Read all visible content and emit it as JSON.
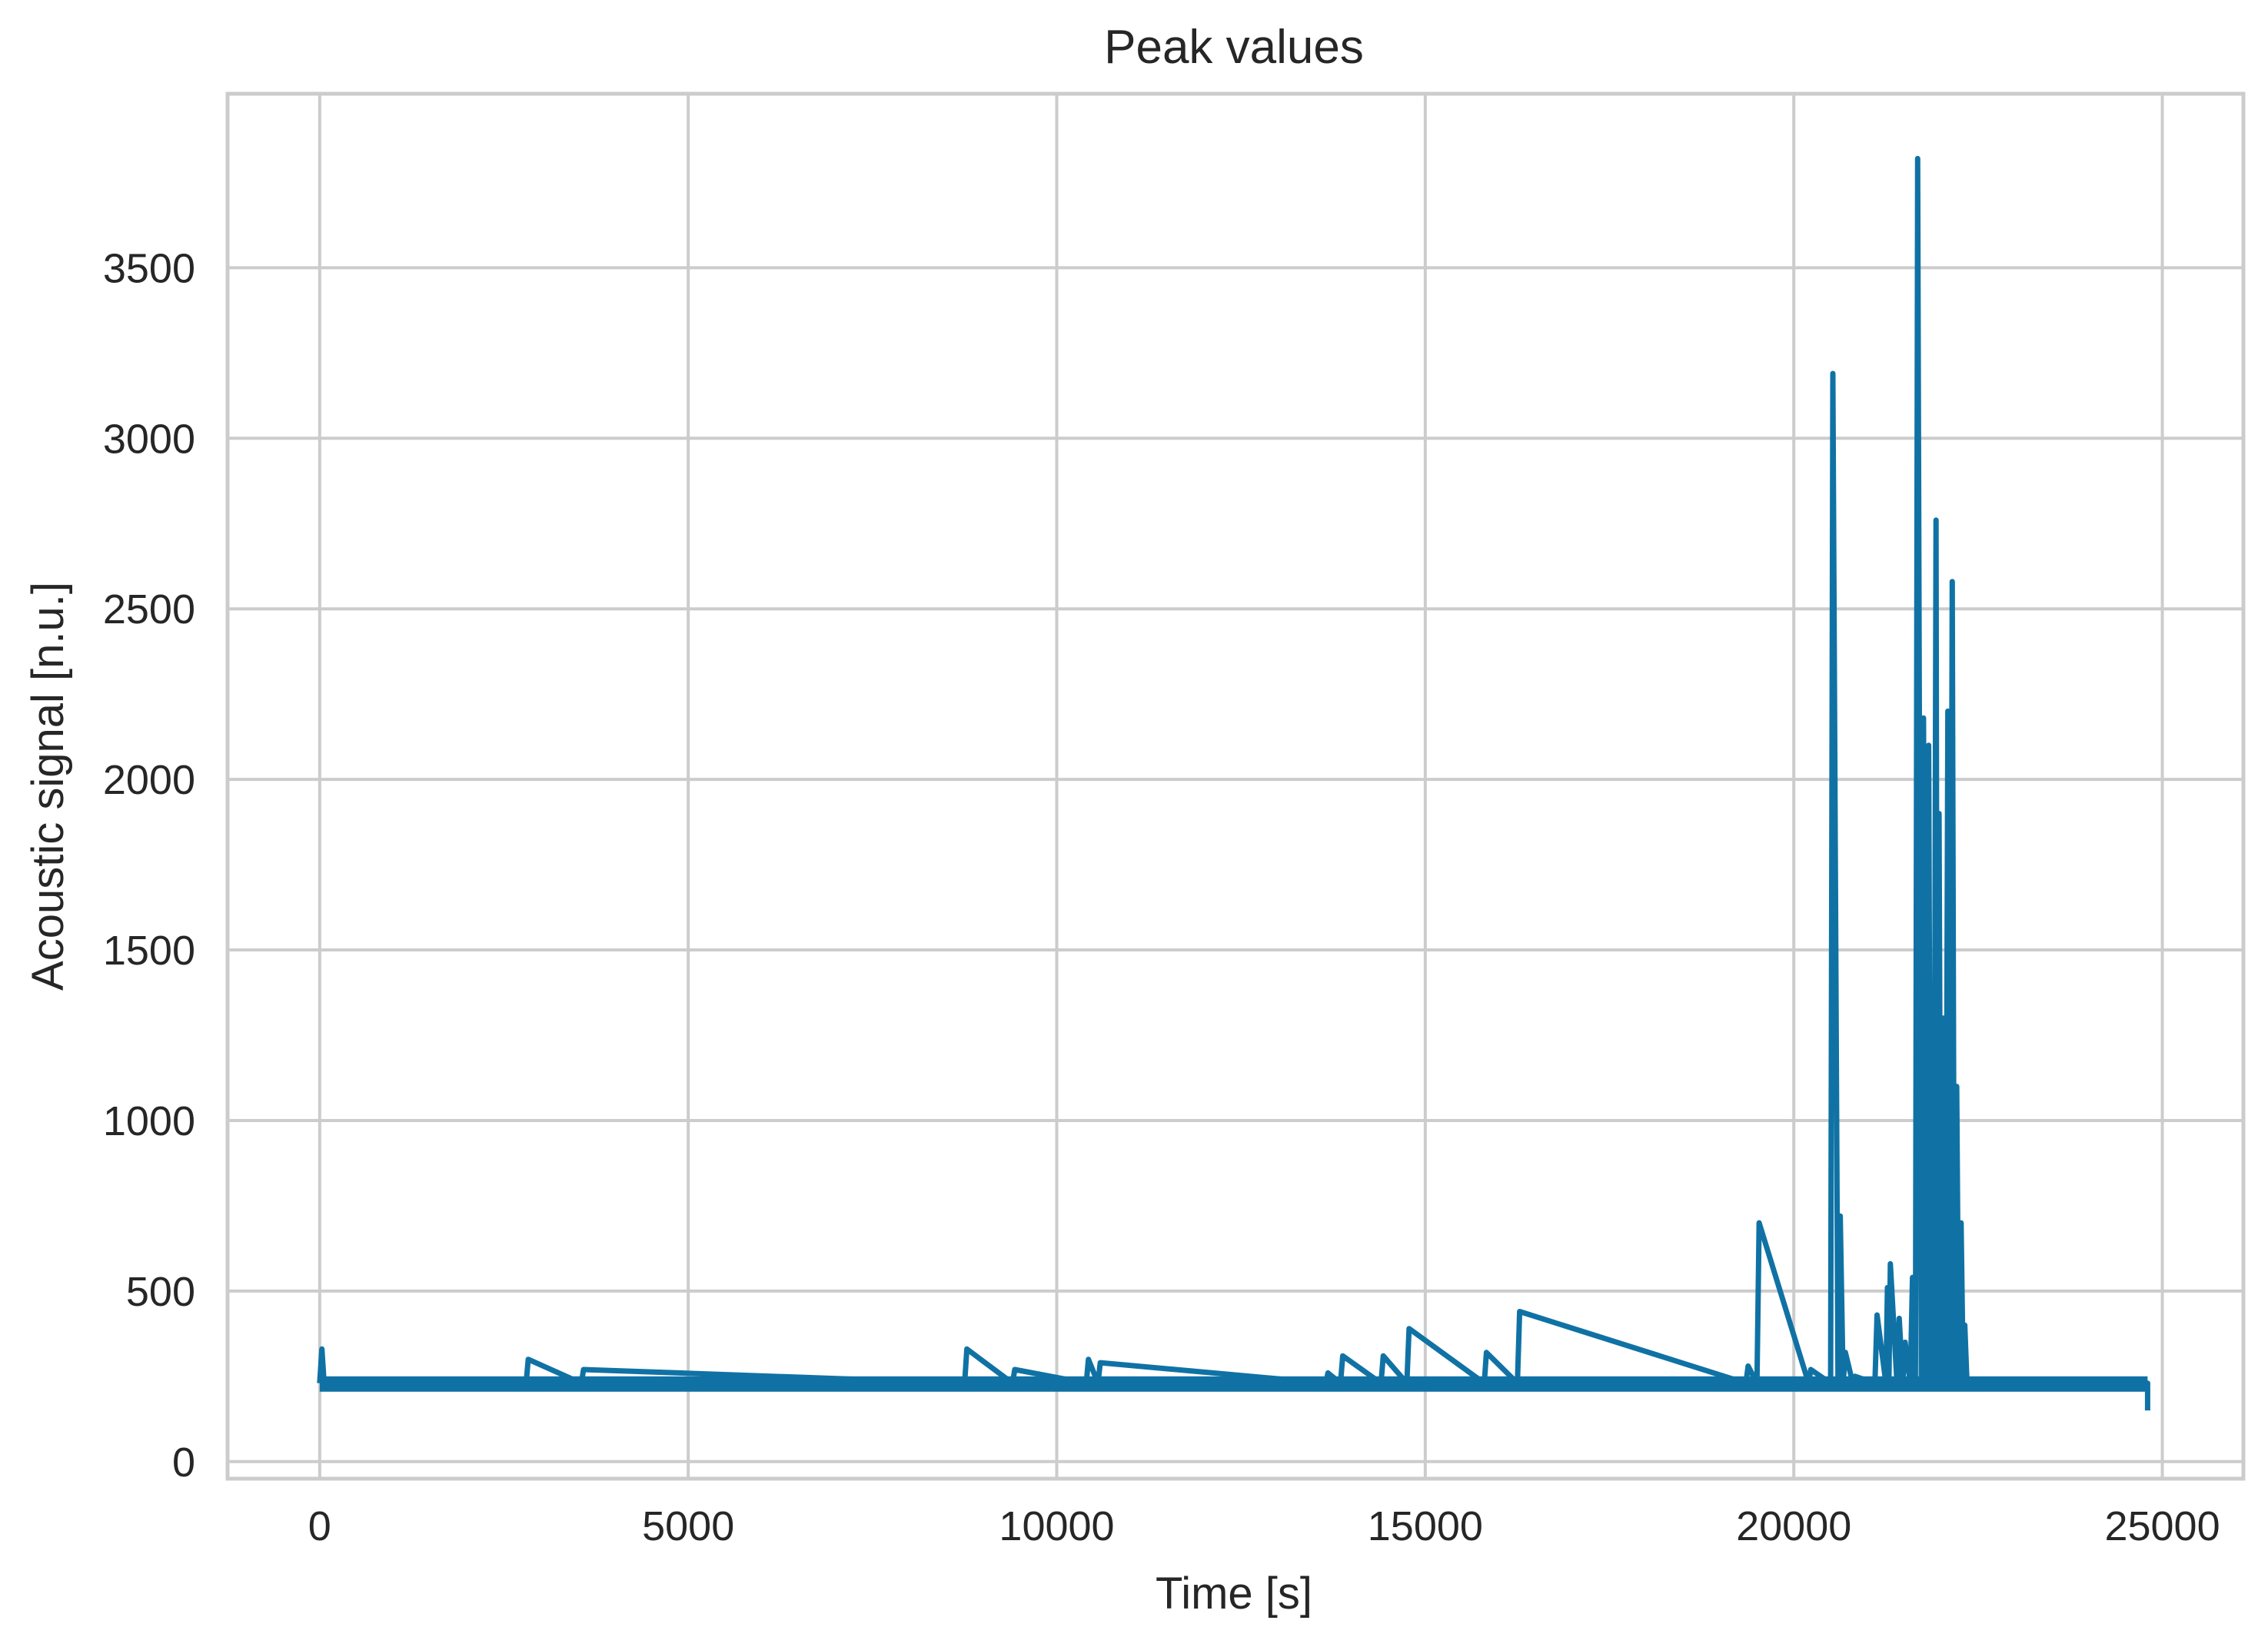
{
  "chart_data": {
    "type": "line",
    "title": "Peak values",
    "xlabel": "Time [s]",
    "ylabel": "Acoustic signal [n.u.]",
    "xlim": [
      -1250,
      26100
    ],
    "ylim": [
      -50,
      4010
    ],
    "xticks": [
      0,
      5000,
      10000,
      15000,
      20000,
      25000
    ],
    "yticks": [
      0,
      500,
      1000,
      1500,
      2000,
      2500,
      3000,
      3500
    ],
    "grid": true,
    "color": "#1072a4",
    "grid_color": "#cccccc",
    "baseline": {
      "x_start": 0,
      "x_end": 24800,
      "low": 205,
      "high": 250
    },
    "x": [
      0,
      30,
      60,
      90,
      2800,
      2830,
      3550,
      3580,
      8750,
      8780,
      9400,
      9430,
      10400,
      10430,
      10560,
      10590,
      13650,
      13680,
      13850,
      13880,
      14400,
      14430,
      14750,
      14780,
      15800,
      15830,
      16250,
      16280,
      19350,
      19380,
      19500,
      19530,
      20200,
      20230,
      20500,
      20530,
      20600,
      20630,
      20670,
      20700,
      20800,
      20830,
      21100,
      21130,
      21250,
      21270,
      21290,
      21310,
      21400,
      21430,
      21480,
      21510,
      21580,
      21610,
      21650,
      21680,
      21730,
      21760,
      21800,
      21830,
      21860,
      21880,
      21900,
      21930,
      21950,
      21970,
      22000,
      22030,
      22060,
      22090,
      22120,
      22150,
      22180,
      22210,
      22240,
      22270,
      22300,
      22320,
      22350,
      22500,
      24800,
      24800
    ],
    "y": [
      230,
      330,
      230,
      230,
      230,
      300,
      230,
      270,
      230,
      330,
      230,
      270,
      230,
      300,
      230,
      290,
      230,
      260,
      230,
      310,
      230,
      310,
      230,
      390,
      230,
      320,
      230,
      440,
      230,
      280,
      230,
      700,
      230,
      270,
      230,
      3190,
      230,
      720,
      230,
      320,
      230,
      250,
      230,
      430,
      230,
      510,
      230,
      580,
      230,
      420,
      230,
      350,
      230,
      540,
      230,
      3820,
      230,
      2180,
      230,
      2100,
      230,
      780,
      230,
      2760,
      230,
      1900,
      230,
      1300,
      230,
      2200,
      230,
      2580,
      230,
      1100,
      230,
      700,
      230,
      400,
      230,
      230,
      230,
      150
    ]
  }
}
